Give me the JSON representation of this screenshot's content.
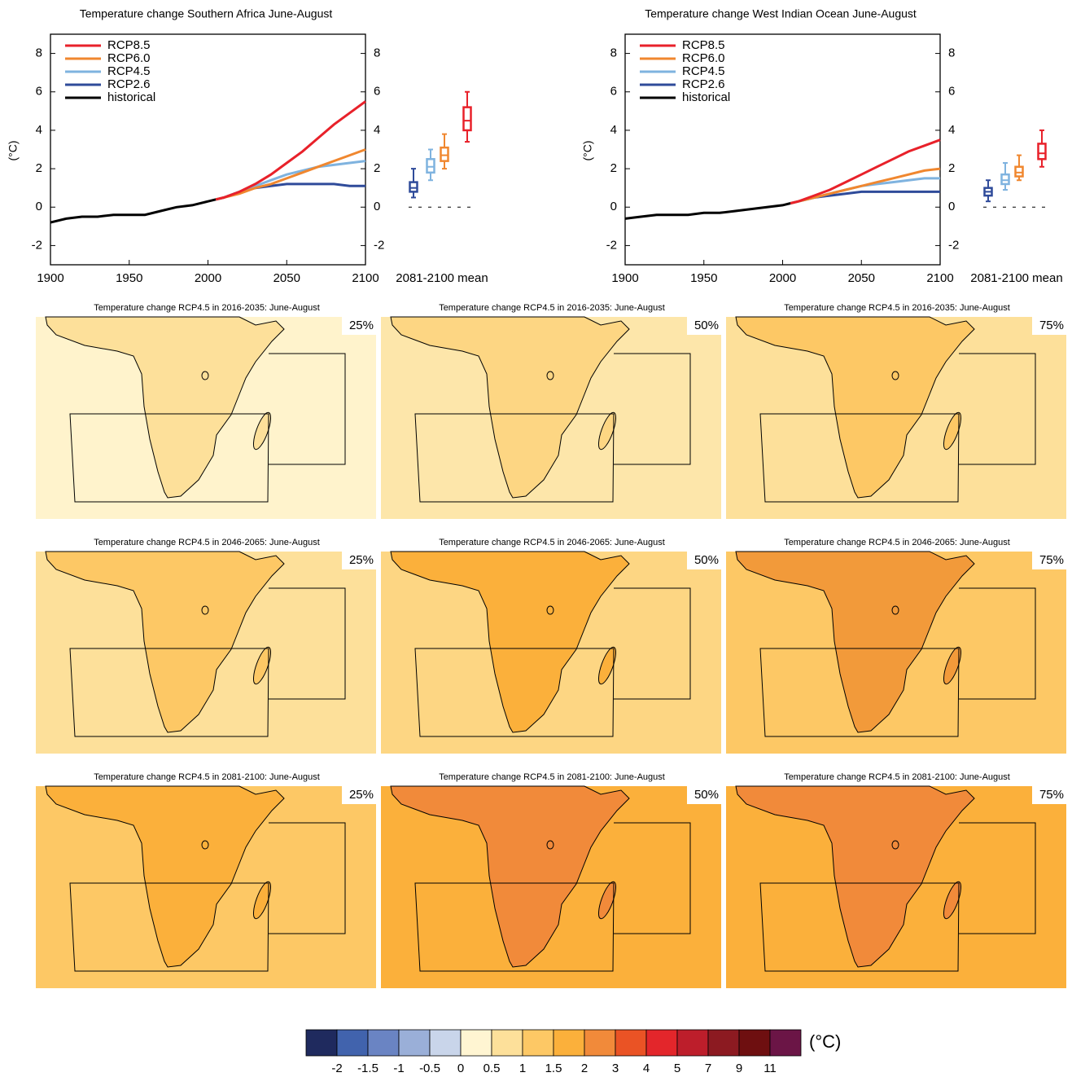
{
  "chart_data": [
    {
      "type": "line",
      "title": "Temperature change Southern Africa June-August",
      "y_label": "(°C)",
      "box_label": "2081-2100 mean",
      "xlim": [
        1900,
        2100
      ],
      "ylim": [
        -3,
        9
      ],
      "xticks": [
        1900,
        1950,
        2000,
        2050,
        2100
      ],
      "yticks": [
        -2,
        0,
        2,
        4,
        6,
        8
      ],
      "x": [
        1900,
        1910,
        1920,
        1930,
        1940,
        1950,
        1960,
        1970,
        1980,
        1990,
        2000,
        2005,
        2010,
        2020,
        2030,
        2040,
        2050,
        2060,
        2070,
        2080,
        2090,
        2100
      ],
      "series": [
        {
          "name": "RCP8.5",
          "color": "#e8212a",
          "values": [
            null,
            null,
            null,
            null,
            null,
            null,
            null,
            null,
            null,
            null,
            null,
            0.4,
            0.5,
            0.8,
            1.2,
            1.7,
            2.3,
            2.9,
            3.6,
            4.3,
            4.9,
            5.5
          ],
          "box": {
            "min": 3.4,
            "q1": 4.0,
            "median": 4.5,
            "q3": 5.2,
            "max": 6.0
          }
        },
        {
          "name": "RCP6.0",
          "color": "#f0872f",
          "values": [
            null,
            null,
            null,
            null,
            null,
            null,
            null,
            null,
            null,
            null,
            null,
            0.4,
            0.5,
            0.7,
            1.0,
            1.2,
            1.5,
            1.8,
            2.1,
            2.4,
            2.7,
            3.0
          ],
          "box": {
            "min": 2.0,
            "q1": 2.4,
            "median": 2.7,
            "q3": 3.1,
            "max": 3.8
          }
        },
        {
          "name": "RCP4.5",
          "color": "#7fb3df",
          "values": [
            null,
            null,
            null,
            null,
            null,
            null,
            null,
            null,
            null,
            null,
            null,
            0.4,
            0.5,
            0.8,
            1.1,
            1.4,
            1.7,
            1.9,
            2.1,
            2.2,
            2.3,
            2.4
          ],
          "box": {
            "min": 1.4,
            "q1": 1.8,
            "median": 2.1,
            "q3": 2.5,
            "max": 3.0
          }
        },
        {
          "name": "RCP2.6",
          "color": "#2f4b9a",
          "values": [
            null,
            null,
            null,
            null,
            null,
            null,
            null,
            null,
            null,
            null,
            null,
            0.4,
            0.5,
            0.8,
            1.0,
            1.1,
            1.2,
            1.2,
            1.2,
            1.2,
            1.1,
            1.1
          ],
          "box": {
            "min": 0.5,
            "q1": 0.8,
            "median": 1.0,
            "q3": 1.3,
            "max": 2.0
          }
        },
        {
          "name": "historical",
          "color": "#000000",
          "values": [
            -0.8,
            -0.6,
            -0.5,
            -0.5,
            -0.4,
            -0.4,
            -0.4,
            -0.2,
            0.0,
            0.1,
            0.3,
            0.4,
            null,
            null,
            null,
            null,
            null,
            null,
            null,
            null,
            null,
            null
          ]
        }
      ]
    },
    {
      "type": "line",
      "title": "Temperature change West Indian Ocean June-August",
      "y_label": "(°C)",
      "box_label": "2081-2100 mean",
      "xlim": [
        1900,
        2100
      ],
      "ylim": [
        -3,
        9
      ],
      "xticks": [
        1900,
        1950,
        2000,
        2050,
        2100
      ],
      "yticks": [
        -2,
        0,
        2,
        4,
        6,
        8
      ],
      "x": [
        1900,
        1910,
        1920,
        1930,
        1940,
        1950,
        1960,
        1970,
        1980,
        1990,
        2000,
        2005,
        2010,
        2020,
        2030,
        2040,
        2050,
        2060,
        2070,
        2080,
        2090,
        2100
      ],
      "series": [
        {
          "name": "RCP8.5",
          "color": "#e8212a",
          "values": [
            null,
            null,
            null,
            null,
            null,
            null,
            null,
            null,
            null,
            null,
            null,
            0.2,
            0.3,
            0.6,
            0.9,
            1.3,
            1.7,
            2.1,
            2.5,
            2.9,
            3.2,
            3.5
          ],
          "box": {
            "min": 2.1,
            "q1": 2.5,
            "median": 2.8,
            "q3": 3.3,
            "max": 4.0
          }
        },
        {
          "name": "RCP6.0",
          "color": "#f0872f",
          "values": [
            null,
            null,
            null,
            null,
            null,
            null,
            null,
            null,
            null,
            null,
            null,
            0.2,
            0.3,
            0.5,
            0.7,
            0.9,
            1.1,
            1.3,
            1.5,
            1.7,
            1.9,
            2.0
          ],
          "box": {
            "min": 1.4,
            "q1": 1.6,
            "median": 1.8,
            "q3": 2.1,
            "max": 2.7
          }
        },
        {
          "name": "RCP4.5",
          "color": "#7fb3df",
          "values": [
            null,
            null,
            null,
            null,
            null,
            null,
            null,
            null,
            null,
            null,
            null,
            0.2,
            0.3,
            0.5,
            0.7,
            0.9,
            1.1,
            1.2,
            1.3,
            1.4,
            1.5,
            1.5
          ],
          "box": {
            "min": 0.9,
            "q1": 1.2,
            "median": 1.4,
            "q3": 1.7,
            "max": 2.3
          }
        },
        {
          "name": "RCP2.6",
          "color": "#2f4b9a",
          "values": [
            null,
            null,
            null,
            null,
            null,
            null,
            null,
            null,
            null,
            null,
            null,
            0.2,
            0.3,
            0.5,
            0.6,
            0.7,
            0.8,
            0.8,
            0.8,
            0.8,
            0.8,
            0.8
          ],
          "box": {
            "min": 0.3,
            "q1": 0.6,
            "median": 0.8,
            "q3": 1.0,
            "max": 1.4
          }
        },
        {
          "name": "historical",
          "color": "#000000",
          "values": [
            -0.6,
            -0.5,
            -0.4,
            -0.4,
            -0.4,
            -0.3,
            -0.3,
            -0.2,
            -0.1,
            0.0,
            0.1,
            0.2,
            null,
            null,
            null,
            null,
            null,
            null,
            null,
            null,
            null,
            null
          ]
        }
      ]
    }
  ],
  "maps": [
    {
      "title": "Temperature change RCP4.5 in 2016-2035: June-August",
      "percentile": "25%",
      "ocean": "#fff3cc",
      "land": "#fde09a"
    },
    {
      "title": "Temperature change RCP4.5 in 2016-2035: June-August",
      "percentile": "50%",
      "ocean": "#fde6aa",
      "land": "#fdd683"
    },
    {
      "title": "Temperature change RCP4.5 in 2016-2035: June-August",
      "percentile": "75%",
      "ocean": "#fde09a",
      "land": "#fdc865"
    },
    {
      "title": "Temperature change RCP4.5 in 2046-2065: June-August",
      "percentile": "25%",
      "ocean": "#fde09a",
      "land": "#fdc865"
    },
    {
      "title": "Temperature change RCP4.5 in 2046-2065: June-August",
      "percentile": "50%",
      "ocean": "#fdd683",
      "land": "#fbb03b"
    },
    {
      "title": "Temperature change RCP4.5 in 2046-2065: June-August",
      "percentile": "75%",
      "ocean": "#fdc865",
      "land": "#f29a3a"
    },
    {
      "title": "Temperature change RCP4.5 in 2081-2100: June-August",
      "percentile": "25%",
      "ocean": "#fdc865",
      "land": "#fbb03b"
    },
    {
      "title": "Temperature change RCP4.5 in 2081-2100: June-August",
      "percentile": "50%",
      "ocean": "#fbb03b",
      "land": "#f18a3a"
    },
    {
      "title": "Temperature change RCP4.5 in 2081-2100: June-August",
      "percentile": "75%",
      "ocean": "#fbb03b",
      "land": "#f18a3a"
    }
  ],
  "colorbar": {
    "unit": "(°C)",
    "ticks": [
      -2,
      -1.5,
      -1,
      -0.5,
      0,
      0.5,
      1,
      1.5,
      2,
      3,
      4,
      5,
      7,
      9,
      11
    ],
    "colors": [
      "#1f2a5e",
      "#4163ad",
      "#6a84c3",
      "#9aafd8",
      "#c9d5ea",
      "#fff5d2",
      "#fde09a",
      "#fdc865",
      "#fbb03b",
      "#f18a3a",
      "#ea5325",
      "#e3262b",
      "#bd1e2b",
      "#8c1a21",
      "#6e0f10",
      "#6b1546"
    ]
  }
}
